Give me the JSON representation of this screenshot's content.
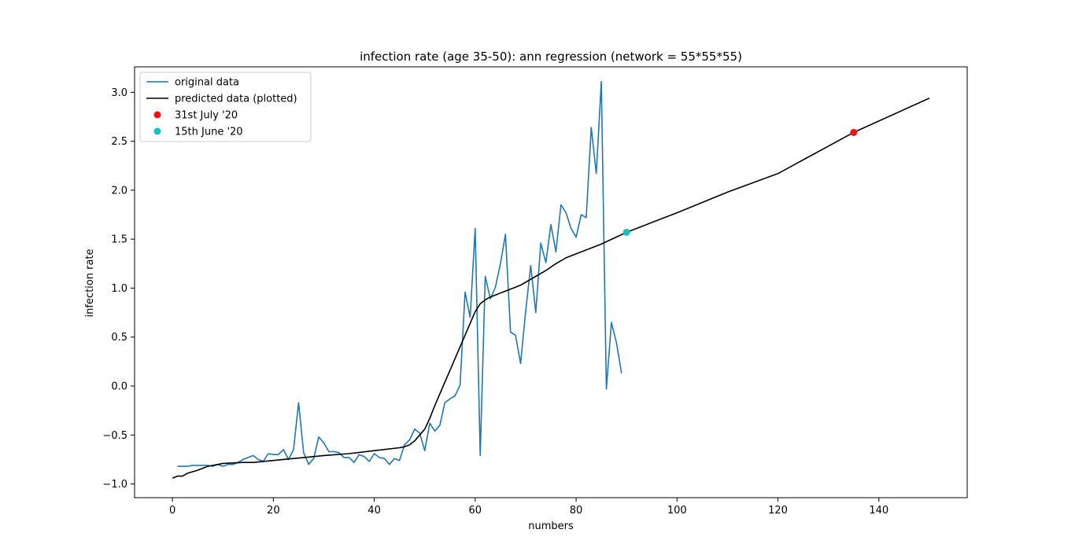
{
  "chart_data": {
    "type": "line",
    "title": "infection rate (age 35-50): ann regression (network = 55*55*55)",
    "xlabel": "numbers",
    "ylabel": "infection rate",
    "xlim": [
      -7.5,
      157.5
    ],
    "ylim": [
      -1.14,
      3.26
    ],
    "xticks": [
      0,
      20,
      40,
      60,
      80,
      100,
      120,
      140
    ],
    "yticks": [
      -1.0,
      -0.5,
      0.0,
      0.5,
      1.0,
      1.5,
      2.0,
      2.5,
      3.0
    ],
    "xtick_labels": [
      "0",
      "20",
      "40",
      "60",
      "80",
      "100",
      "120",
      "140"
    ],
    "ytick_labels": [
      "−1.0",
      "−0.5",
      "0.0",
      "0.5",
      "1.0",
      "1.5",
      "2.0",
      "2.5",
      "3.0"
    ],
    "grid": false,
    "legend_position": "top-left",
    "series": [
      {
        "name": "original data",
        "kind": "line",
        "color": "#1f77b4",
        "x": [
          1,
          2,
          3,
          4,
          5,
          6,
          7,
          8,
          9,
          10,
          11,
          12,
          13,
          14,
          15,
          16,
          17,
          18,
          19,
          20,
          21,
          22,
          23,
          24,
          25,
          26,
          27,
          28,
          29,
          30,
          31,
          32,
          33,
          34,
          35,
          36,
          37,
          38,
          39,
          40,
          41,
          42,
          43,
          44,
          45,
          46,
          47,
          48,
          49,
          50,
          51,
          52,
          53,
          54,
          55,
          56,
          57,
          58,
          59,
          60,
          61,
          62,
          63,
          64,
          65,
          66,
          67,
          68,
          69,
          70,
          71,
          72,
          73,
          74,
          75,
          76,
          77,
          78,
          79,
          80,
          81,
          82,
          83,
          84,
          85,
          86,
          87,
          88,
          89
        ],
        "y": [
          -0.82,
          -0.82,
          -0.82,
          -0.81,
          -0.81,
          -0.81,
          -0.81,
          -0.82,
          -0.8,
          -0.82,
          -0.8,
          -0.8,
          -0.78,
          -0.75,
          -0.73,
          -0.71,
          -0.75,
          -0.77,
          -0.69,
          -0.7,
          -0.7,
          -0.65,
          -0.75,
          -0.65,
          -0.17,
          -0.68,
          -0.8,
          -0.74,
          -0.52,
          -0.58,
          -0.67,
          -0.67,
          -0.68,
          -0.73,
          -0.73,
          -0.78,
          -0.7,
          -0.72,
          -0.77,
          -0.69,
          -0.73,
          -0.74,
          -0.8,
          -0.74,
          -0.76,
          -0.6,
          -0.55,
          -0.44,
          -0.48,
          -0.66,
          -0.38,
          -0.46,
          -0.4,
          -0.17,
          -0.13,
          -0.1,
          0.01,
          0.96,
          0.7,
          1.61,
          -0.71,
          1.12,
          0.89,
          1.01,
          1.25,
          1.55,
          0.55,
          0.52,
          0.23,
          0.76,
          1.23,
          0.75,
          1.46,
          1.26,
          1.65,
          1.37,
          1.85,
          1.77,
          1.61,
          1.52,
          1.75,
          1.72,
          2.64,
          2.17,
          3.11,
          -0.03,
          0.65,
          0.44,
          0.13
        ]
      },
      {
        "name": "predicted data (plotted)",
        "kind": "line",
        "color": "#000000",
        "x": [
          0,
          1,
          2,
          3,
          5,
          7,
          9,
          10,
          12,
          14,
          16,
          18,
          20,
          25,
          30,
          35,
          40,
          45,
          46,
          47,
          48,
          49,
          50,
          51,
          52,
          53,
          54,
          55,
          56,
          57,
          58,
          59,
          60,
          61,
          62,
          63,
          64,
          65,
          66,
          67,
          68,
          69,
          70,
          72,
          74,
          76,
          78,
          80,
          85,
          90,
          95,
          100,
          110,
          120,
          135,
          150
        ],
        "y": [
          -0.94,
          -0.92,
          -0.92,
          -0.89,
          -0.86,
          -0.82,
          -0.8,
          -0.79,
          -0.785,
          -0.78,
          -0.78,
          -0.77,
          -0.76,
          -0.735,
          -0.71,
          -0.69,
          -0.66,
          -0.63,
          -0.62,
          -0.6,
          -0.56,
          -0.5,
          -0.44,
          -0.33,
          -0.2,
          -0.08,
          0.04,
          0.16,
          0.28,
          0.4,
          0.52,
          0.64,
          0.76,
          0.84,
          0.88,
          0.91,
          0.93,
          0.95,
          0.97,
          0.99,
          1.01,
          1.03,
          1.06,
          1.12,
          1.18,
          1.25,
          1.31,
          1.35,
          1.45,
          1.57,
          1.67,
          1.77,
          1.98,
          2.17,
          2.59,
          2.94
        ]
      },
      {
        "name": "31st July '20",
        "kind": "scatter",
        "color": "#ee1111",
        "x": [
          135
        ],
        "y": [
          2.59
        ]
      },
      {
        "name": "15th June '20",
        "kind": "scatter",
        "color": "#17bfbf",
        "x": [
          90
        ],
        "y": [
          1.57
        ]
      }
    ]
  }
}
